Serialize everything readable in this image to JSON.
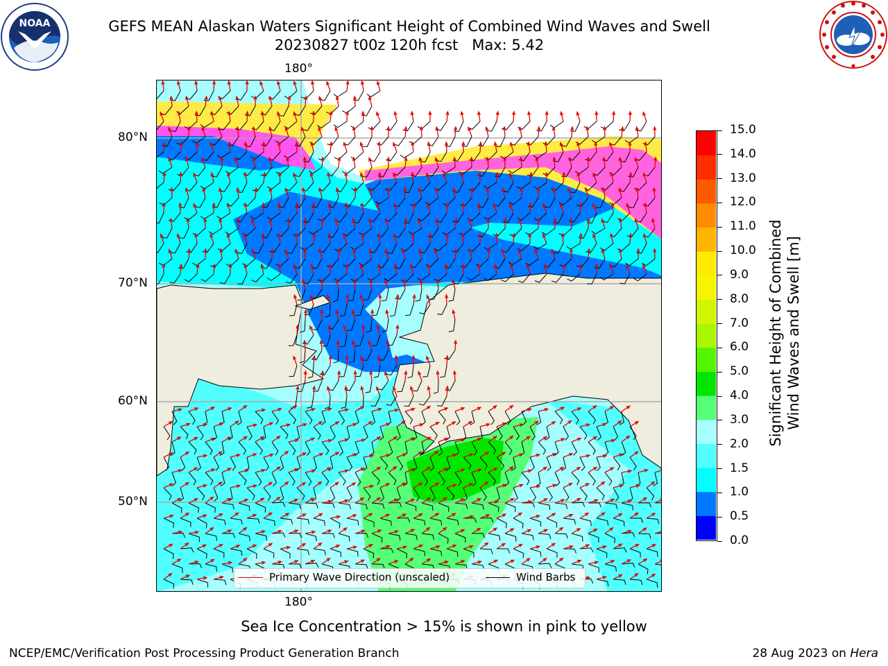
{
  "title": {
    "line1": "GEFS MEAN Alaskan Waters Significant Height of Combined Wind Waves and Swell",
    "line2": "20230827 t00z 120h fcst   Max: 5.42"
  },
  "logos": {
    "left": {
      "icon": "noaa-logo",
      "text": "NOAA",
      "ring_text": "NATIONAL OCEANIC AND ATMOSPHERIC ADMINISTRATION · U.S. DEPARTMENT OF COMMERCE"
    },
    "right": {
      "icon": "nws-logo",
      "ring_text": "NATIONAL WEATHER SERVICE"
    }
  },
  "map": {
    "longitude_label_top": "180°",
    "longitude_label_bottom": "180°",
    "latitude_labels": [
      "80°N",
      "70°N",
      "60°N",
      "50°N"
    ],
    "colors": {
      "land": "#efedde",
      "ice_pink": "#ff55ee",
      "ice_yellow": "#ffeb46",
      "ice_white": "#ffffff",
      "wave_arrow": "#ff0000",
      "wind_barb": "#000000",
      "grid": "#aaaaaa"
    }
  },
  "legend": {
    "items": [
      {
        "label": "Primary Wave Direction (unscaled)",
        "color": "#e00000"
      },
      {
        "label": "Wind Barbs",
        "color": "#000000"
      }
    ]
  },
  "colorbar": {
    "label_line1": "Significant Height of Combined",
    "label_line2": "Wind Waves and Swell [m]",
    "ticks": [
      "15.0",
      "14.0",
      "13.0",
      "12.0",
      "11.0",
      "10.0",
      "9.0",
      "8.0",
      "7.0",
      "6.0",
      "5.0",
      "4.0",
      "3.0",
      "2.0",
      "1.5",
      "1.0",
      "0.5",
      "0.0"
    ],
    "colors_bottom_to_top": [
      "#0000ff",
      "#0078ff",
      "#00ffff",
      "#52ffff",
      "#a5ffff",
      "#55ff78",
      "#00e600",
      "#55f500",
      "#aaf500",
      "#d2f500",
      "#f5f500",
      "#ffeb00",
      "#ffb400",
      "#ff8c00",
      "#ff5a00",
      "#ff2d00",
      "#ff0000"
    ]
  },
  "notes": {
    "ice": "Sea Ice Concentration > 15% is shown in pink to yellow"
  },
  "footer": {
    "left": "NCEP/EMC/Verification Post Processing Product Generation Branch",
    "right_date": "28 Aug 2023 on ",
    "right_host": "Hera"
  }
}
